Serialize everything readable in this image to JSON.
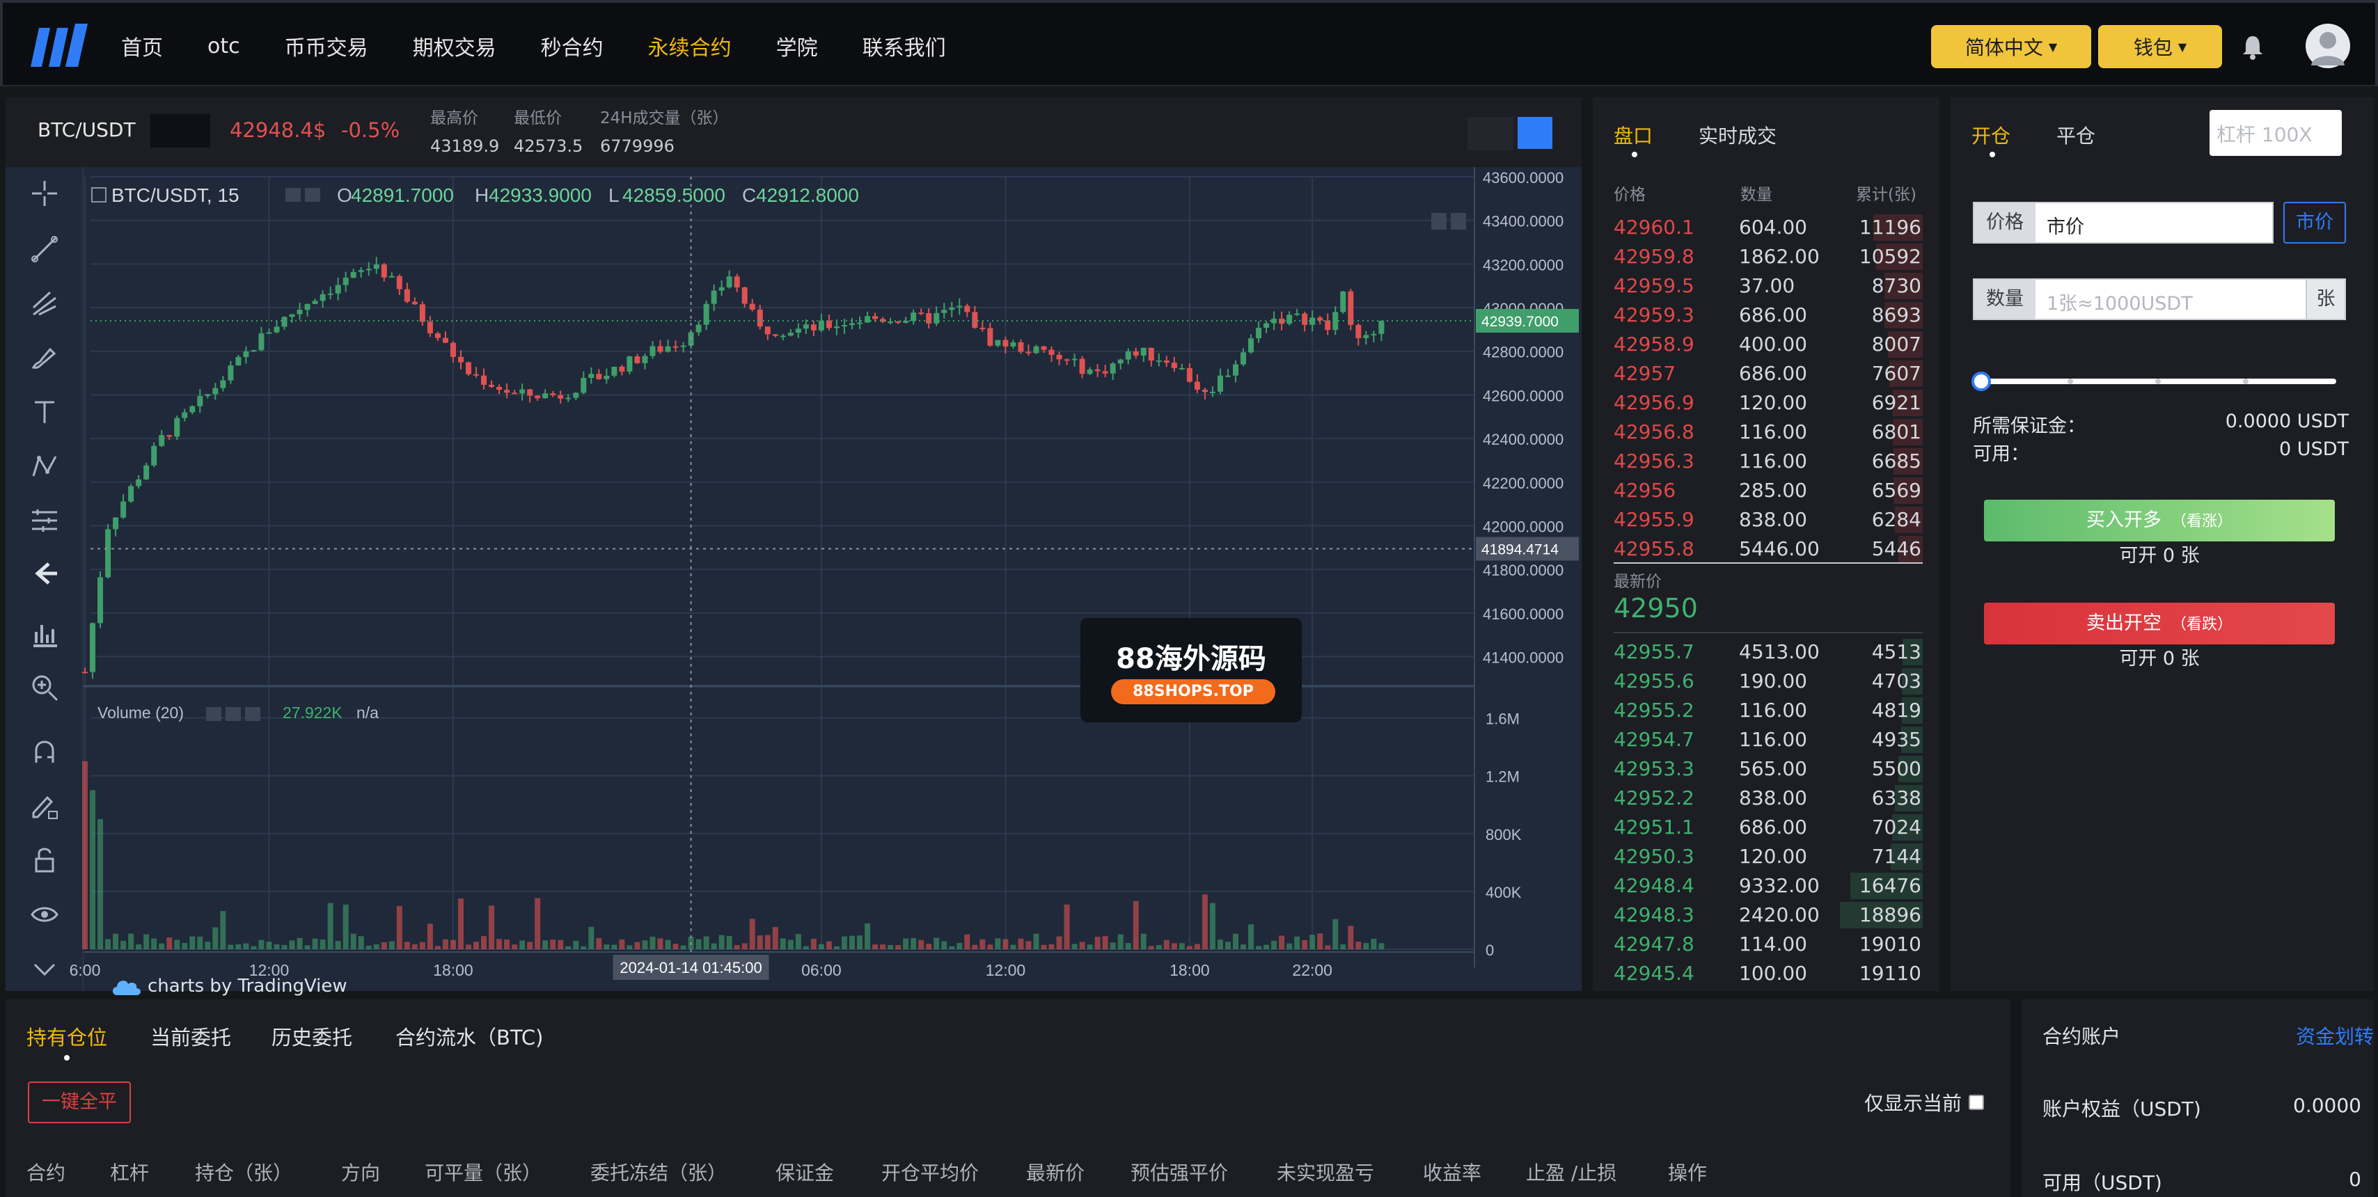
{
  "nav": {
    "items": [
      "首页",
      "otc",
      "币币交易",
      "期权交易",
      "秒合约",
      "永续合约",
      "学院",
      "联系我们"
    ],
    "active_index": 5,
    "language_label": "简体中文",
    "wallet_label": "钱包"
  },
  "ticker": {
    "symbol": "BTC/USDT",
    "price": "42948.4$",
    "change": "-0.5%",
    "high_label": "最高价",
    "high_value": "43189.9",
    "low_label": "最低价",
    "low_value": "42573.5",
    "vol_label": "24H成交量（张）",
    "vol_value": "6779996"
  },
  "chart": {
    "legend_symbol": "BTC/USDT, 15",
    "o_label": "O",
    "o_value": "42891.7000",
    "h_label": "H",
    "h_value": "42933.9000",
    "l_label": "L",
    "l_value": "42859.5000",
    "c_label": "C",
    "c_value": "42912.8000",
    "volume_label": "Volume (20)",
    "volume_value": "27.922K",
    "volume_na": "n/a",
    "credit": "charts by TradingView",
    "current_price_tag": "42939.7000",
    "crosshair_price_tag": "41894.4714",
    "crosshair_time_tag": "2024-01-14 01:45:00",
    "watermark_title": "88海外源码",
    "watermark_url": "88SHOPS.TOP",
    "colors": {
      "up": "#3f9e6a",
      "down": "#e05252",
      "bg": "#1f2939"
    }
  },
  "chart_data": {
    "type": "candlestick",
    "title": "BTC/USDT, 15",
    "price_ticks": [
      "43600.0000",
      "43400.0000",
      "43200.0000",
      "43000.0000",
      "42800.0000",
      "42600.0000",
      "42400.0000",
      "42200.0000",
      "42000.0000",
      "41800.0000",
      "41600.0000",
      "41400.0000"
    ],
    "price_range": [
      41290,
      43600
    ],
    "volume_ticks": [
      "1.6M",
      "1.2M",
      "800K",
      "400K",
      "0"
    ],
    "volume_range": [
      0,
      1800000
    ],
    "time_ticks": [
      "6:00",
      "12:00",
      "18:00",
      "06:00",
      "12:00",
      "18:00",
      "22:00"
    ],
    "time_tick_x_hours": [
      0,
      6,
      12,
      24,
      30,
      36,
      40
    ],
    "crosshair_hours": 19.75,
    "price_key": [
      41330,
      42000,
      42400,
      42600,
      42900,
      43050,
      43200,
      42950,
      42700,
      42600,
      42600,
      42700,
      42800,
      42850,
      43150,
      42900,
      42900,
      42950,
      42950,
      42950,
      43000,
      42850,
      42800,
      42700,
      42800,
      42750,
      42600,
      42750,
      42950,
      42950,
      42950,
      42900,
      43050,
      42850,
      42850,
      42939.7
    ],
    "price_key_hours": [
      0,
      0.75,
      2.5,
      4,
      6,
      7.5,
      9.5,
      11,
      12.5,
      14,
      15.5,
      17,
      18.5,
      19.5,
      21,
      22,
      23.5,
      25.5,
      26.5,
      27.5,
      28.5,
      29.5,
      31,
      33,
      34.25,
      35.5,
      36.5,
      37.5,
      38.5,
      39.5,
      40,
      40.5,
      41,
      41.5,
      42,
      42.3
    ]
  },
  "orderbook": {
    "tab_book": "盘口",
    "tab_trades": "实时成交",
    "col_price": "价格",
    "col_qty": "数量",
    "col_total": "累计(张)",
    "asks": [
      {
        "p": "42960.1",
        "q": "604.00",
        "c": "11196",
        "depth": 0.59
      },
      {
        "p": "42959.8",
        "q": "1862.00",
        "c": "10592",
        "depth": 0.56
      },
      {
        "p": "42959.5",
        "q": "37.00",
        "c": "8730",
        "depth": 0.46
      },
      {
        "p": "42959.3",
        "q": "686.00",
        "c": "8693",
        "depth": 0.46
      },
      {
        "p": "42958.9",
        "q": "400.00",
        "c": "8007",
        "depth": 0.42
      },
      {
        "p": "42957",
        "q": "686.00",
        "c": "7607",
        "depth": 0.4
      },
      {
        "p": "42956.9",
        "q": "120.00",
        "c": "6921",
        "depth": 0.36
      },
      {
        "p": "42956.8",
        "q": "116.00",
        "c": "6801",
        "depth": 0.36
      },
      {
        "p": "42956.3",
        "q": "116.00",
        "c": "6685",
        "depth": 0.35
      },
      {
        "p": "42956",
        "q": "285.00",
        "c": "6569",
        "depth": 0.35
      },
      {
        "p": "42955.9",
        "q": "838.00",
        "c": "6284",
        "depth": 0.33
      },
      {
        "p": "42955.8",
        "q": "5446.00",
        "c": "5446",
        "depth": 0.29
      }
    ],
    "last_label": "最新价",
    "last_price": "42950",
    "bids": [
      {
        "p": "42955.7",
        "q": "4513.00",
        "c": "4513",
        "depth": 0.24
      },
      {
        "p": "42955.6",
        "q": "190.00",
        "c": "4703",
        "depth": 0.25
      },
      {
        "p": "42955.2",
        "q": "116.00",
        "c": "4819",
        "depth": 0.25
      },
      {
        "p": "42954.7",
        "q": "116.00",
        "c": "4935",
        "depth": 0.26
      },
      {
        "p": "42953.3",
        "q": "565.00",
        "c": "5500",
        "depth": 0.29
      },
      {
        "p": "42952.2",
        "q": "838.00",
        "c": "6338",
        "depth": 0.33
      },
      {
        "p": "42951.1",
        "q": "686.00",
        "c": "7024",
        "depth": 0.37
      },
      {
        "p": "42950.3",
        "q": "120.00",
        "c": "7144",
        "depth": 0.38
      },
      {
        "p": "42948.4",
        "q": "9332.00",
        "c": "16476",
        "depth": 0.87
      },
      {
        "p": "42948.3",
        "q": "2420.00",
        "c": "18896",
        "depth": 0.99
      },
      {
        "p": "42947.8",
        "q": "114.00",
        "c": "19010",
        "depth": 0.0
      },
      {
        "p": "42945.4",
        "q": "100.00",
        "c": "19110",
        "depth": 0.0
      }
    ]
  },
  "trade": {
    "tab_open": "开仓",
    "tab_close": "平仓",
    "leverage_placeholder": "杠杆 100X",
    "price_label": "价格",
    "price_value": "市价",
    "market_button": "市价",
    "qty_label": "数量",
    "qty_placeholder": "1张≈1000USDT",
    "qty_unit": "张",
    "slider_value": 0,
    "margin_label": "所需保证金：",
    "margin_value": "0.0000 USDT",
    "available_label": "可用：",
    "available_value": "0 USDT",
    "buy_label": "买入开多",
    "buy_hint": "（看涨）",
    "buy_avail": "可开 0 张",
    "sell_label": "卖出开空",
    "sell_hint": "（看跌）",
    "sell_avail": "可开 0 张"
  },
  "positions": {
    "tabs": [
      "持有仓位",
      "当前委托",
      "历史委托",
      "合约流水（BTC)"
    ],
    "close_all": "一键全平",
    "only_current": "仅显示当前",
    "columns": [
      "合约",
      "杠杆",
      "持仓（张）",
      "方向",
      "可平量（张）",
      "委托冻结（张）",
      "保证金",
      "开仓平均价",
      "最新价",
      "预估强平价",
      "未实现盈亏",
      "收益率",
      "止盈 /止损",
      "操作"
    ]
  },
  "account": {
    "title": "合约账户",
    "transfer_link": "资金划转",
    "equity_label": "账户权益（USDT)",
    "equity_value": "0.0000",
    "avail_label": "可用（USDT)",
    "avail_value": "0"
  }
}
